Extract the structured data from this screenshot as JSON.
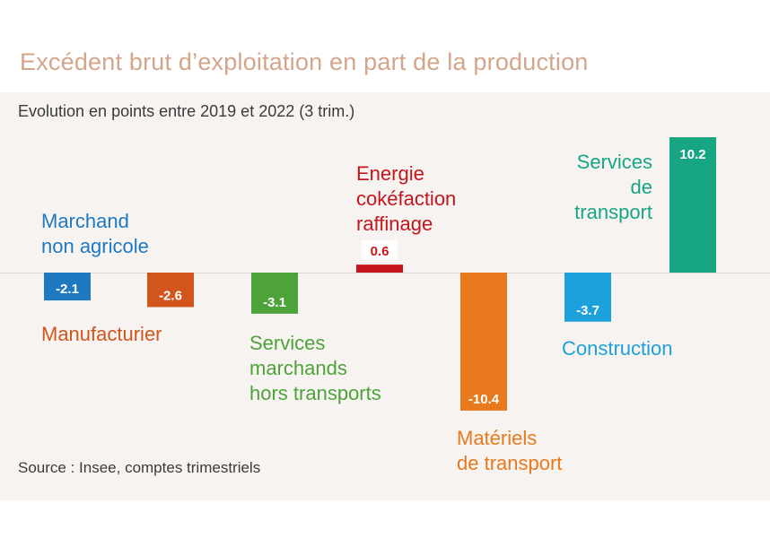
{
  "title": "Excédent brut d’exploitation en part de la production",
  "subtitle": "Evolution en points entre 2019 et 2022 (3 trim.)",
  "source": "Source : Insee, comptes trimestriels",
  "chart_data": {
    "type": "bar",
    "title": "Excédent brut d’exploitation en part de la production",
    "subtitle": "Evolution en points entre 2019 et 2022 (3 trim.)",
    "xlabel": "",
    "ylabel": "",
    "ylim": [
      -10.4,
      10.2
    ],
    "grid": false,
    "categories": [
      {
        "lines": [
          "Marchand",
          "non agricole"
        ],
        "value": -2.1,
        "value_label": "-2.1",
        "color": "#1f79c1"
      },
      {
        "lines": [
          "Manufacturier"
        ],
        "value": -2.6,
        "value_label": "-2.6",
        "color": "#d2551d"
      },
      {
        "lines": [
          "Services",
          "marchands",
          "hors transports"
        ],
        "value": -3.1,
        "value_label": "-3.1",
        "color": "#4da33a"
      },
      {
        "lines": [
          "Energie",
          "cokéfaction",
          "raffinage"
        ],
        "value": 0.6,
        "value_label": "0.6",
        "color": "#c4161c",
        "value_label_color": "#c4161c"
      },
      {
        "lines": [
          "Matériels",
          "de transport"
        ],
        "value": -10.4,
        "value_label": "-10.4",
        "color": "#e8791d"
      },
      {
        "lines": [
          "Construction"
        ],
        "value": -3.7,
        "value_label": "-3.7",
        "color": "#1da1dd"
      },
      {
        "lines": [
          "Services",
          "de",
          "transport"
        ],
        "value": 10.2,
        "value_label": "10.2",
        "color": "#17a684"
      }
    ]
  }
}
